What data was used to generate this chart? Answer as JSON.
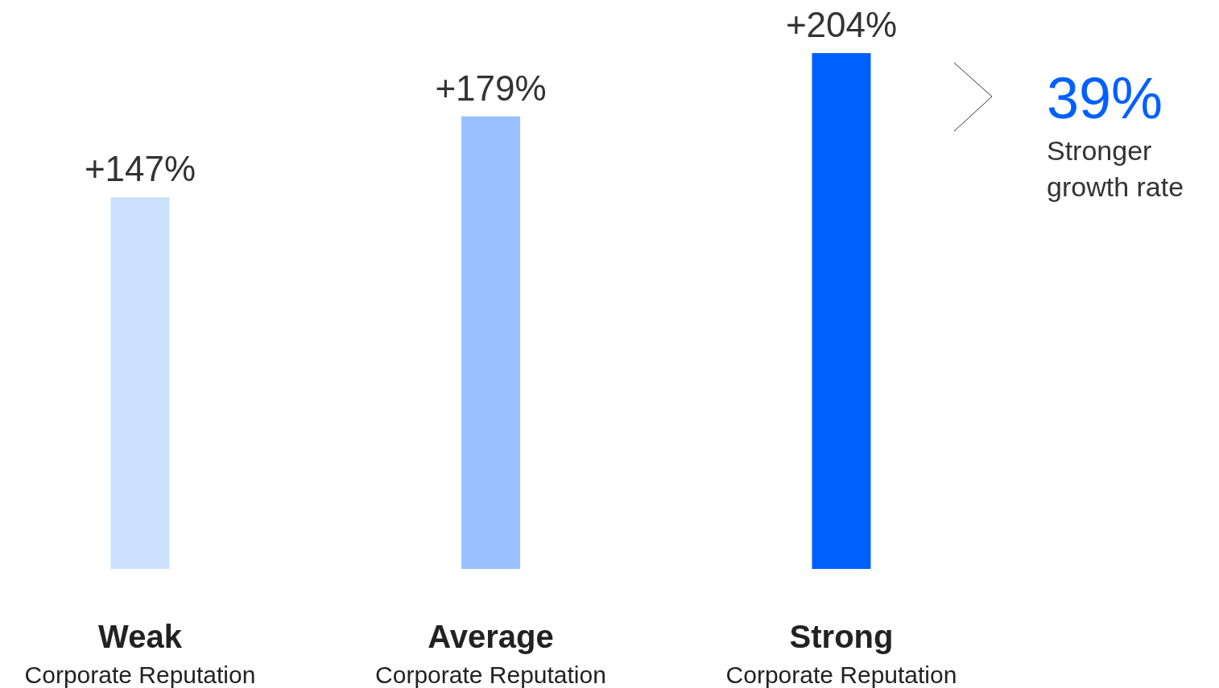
{
  "chart_data": {
    "type": "bar",
    "categories": [
      "Weak\nCorporate Reputation",
      "Average\nCorporate Reputation",
      "Strong\nCorporate Reputation"
    ],
    "values": [
      147,
      179,
      204
    ],
    "colors": [
      "#cce0ff",
      "#99c0ff",
      "#0060ff"
    ],
    "value_labels": [
      "+147%",
      "+179%",
      "+204%"
    ],
    "annotations": [
      "39%",
      "Stronger growth rate"
    ]
  }
}
